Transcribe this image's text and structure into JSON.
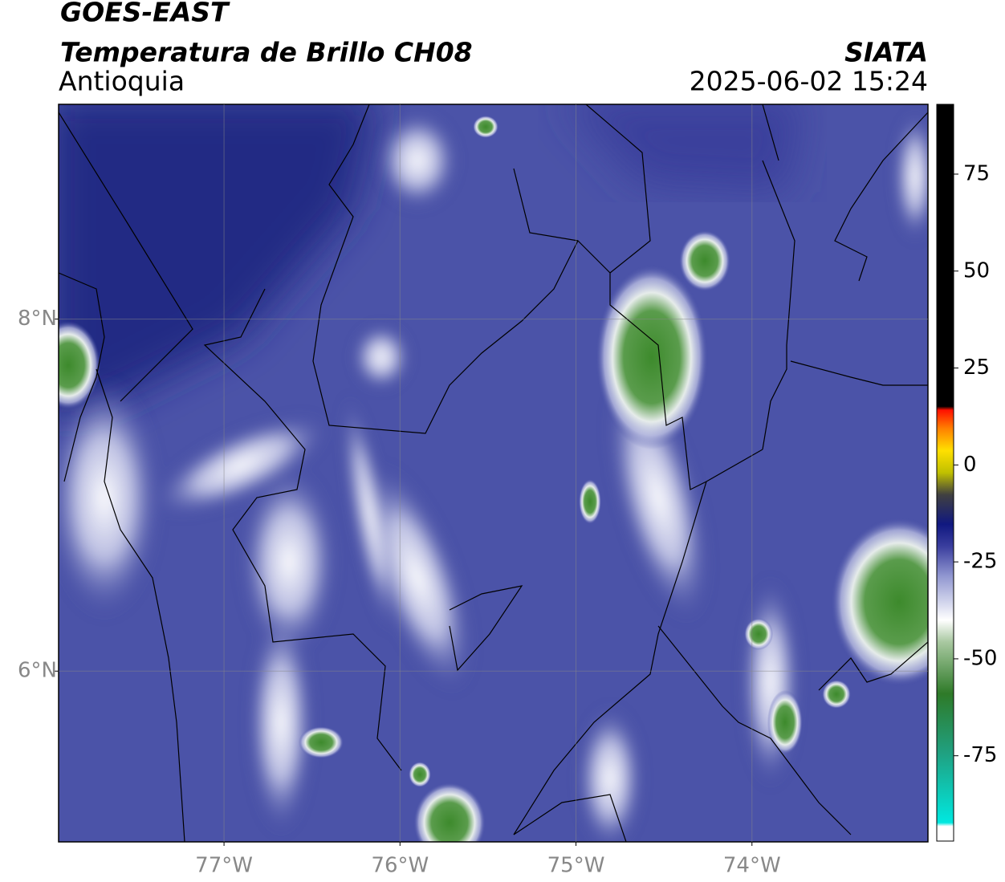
{
  "header": {
    "title": "GOES-EAST",
    "subtitle": "Temperatura de Brillo CH08",
    "region": "Antioquia",
    "source": "SIATA",
    "timestamp": "2025-06-02 15:24"
  },
  "map": {
    "xlim": [
      -77.94,
      -73.0
    ],
    "ylim": [
      5.03,
      9.22
    ],
    "grid": true,
    "xticks": [
      {
        "value": -77,
        "label": "77°W"
      },
      {
        "value": -76,
        "label": "76°W"
      },
      {
        "value": -75,
        "label": "75°W"
      },
      {
        "value": -74,
        "label": "74°W"
      }
    ],
    "yticks": [
      {
        "value": 8,
        "label": "8°N"
      },
      {
        "value": 6,
        "label": "6°N"
      }
    ]
  },
  "colorbar": {
    "lim": [
      -97,
      93
    ],
    "ticks": [
      75,
      50,
      25,
      0,
      -25,
      -50,
      -75
    ]
  }
}
